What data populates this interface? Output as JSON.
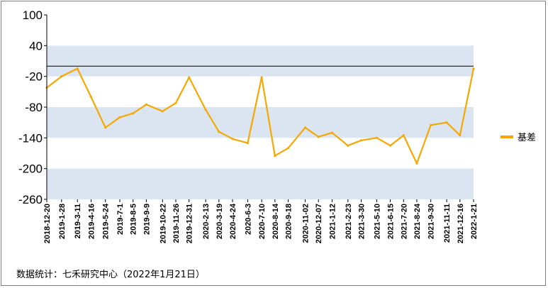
{
  "chart_data": {
    "type": "line",
    "title": "",
    "xlabel": "",
    "ylabel": "",
    "ylim": [
      -260,
      100
    ],
    "yticks": [
      100,
      40,
      -20,
      -80,
      -140,
      -200,
      -260
    ],
    "ytick_labels": [
      "100",
      "40",
      "-20",
      "-80",
      "-140",
      "-200",
      "-260"
    ],
    "reference_line": 0,
    "band_color": "#dbe5f1",
    "x_range": [
      "2018-12-20",
      "2022-01-21"
    ],
    "xtick_labels": [
      "2018-12-20",
      "2019-1-28",
      "2019-3-11",
      "2019-4-16",
      "2019-5-24",
      "2019-7-1",
      "2019-8-5",
      "2019-9-9",
      "2019-10-22",
      "2019-11-26",
      "2019-12-31",
      "2020-2-13",
      "2020-3-19",
      "2020-4-24",
      "2020-6-3",
      "2020-7-10",
      "2020-8-14",
      "2020-9-18",
      "2020-11-02",
      "2020-12-07",
      "2021-1-12",
      "2021-2-23",
      "2021-3-30",
      "2021-5-10",
      "2021-6-15",
      "2021-7-20",
      "2021-8-24",
      "2021-9-30",
      "2021-11-11",
      "2021-12-16",
      "2022-1-21"
    ],
    "legend": {
      "position": "right"
    },
    "series": [
      {
        "name": "基差",
        "color": "#f5a800",
        "x": [
          "2018-12-20",
          "2019-1-28",
          "2019-3-11",
          "2019-4-16",
          "2019-5-24",
          "2019-7-1",
          "2019-8-5",
          "2019-9-9",
          "2019-10-22",
          "2019-11-26",
          "2019-12-31",
          "2020-2-13",
          "2020-3-19",
          "2020-4-24",
          "2020-6-3",
          "2020-7-10",
          "2020-8-14",
          "2020-9-18",
          "2020-11-02",
          "2020-12-07",
          "2021-1-12",
          "2021-2-23",
          "2021-3-30",
          "2021-5-10",
          "2021-6-15",
          "2021-7-20",
          "2021-8-24",
          "2021-9-30",
          "2021-11-11",
          "2021-12-16",
          "2022-1-21"
        ],
        "values": [
          -42,
          -20,
          -5,
          -60,
          -120,
          -100,
          -92,
          -75,
          -88,
          -72,
          -22,
          -85,
          -128,
          -142,
          -150,
          -22,
          -175,
          -160,
          -120,
          -138,
          -130,
          -155,
          -145,
          -140,
          -155,
          -135,
          -190,
          -115,
          -110,
          -135,
          -5
        ]
      }
    ]
  },
  "source": {
    "text": "数据统计：七禾研究中心（2022年1月21日）"
  }
}
